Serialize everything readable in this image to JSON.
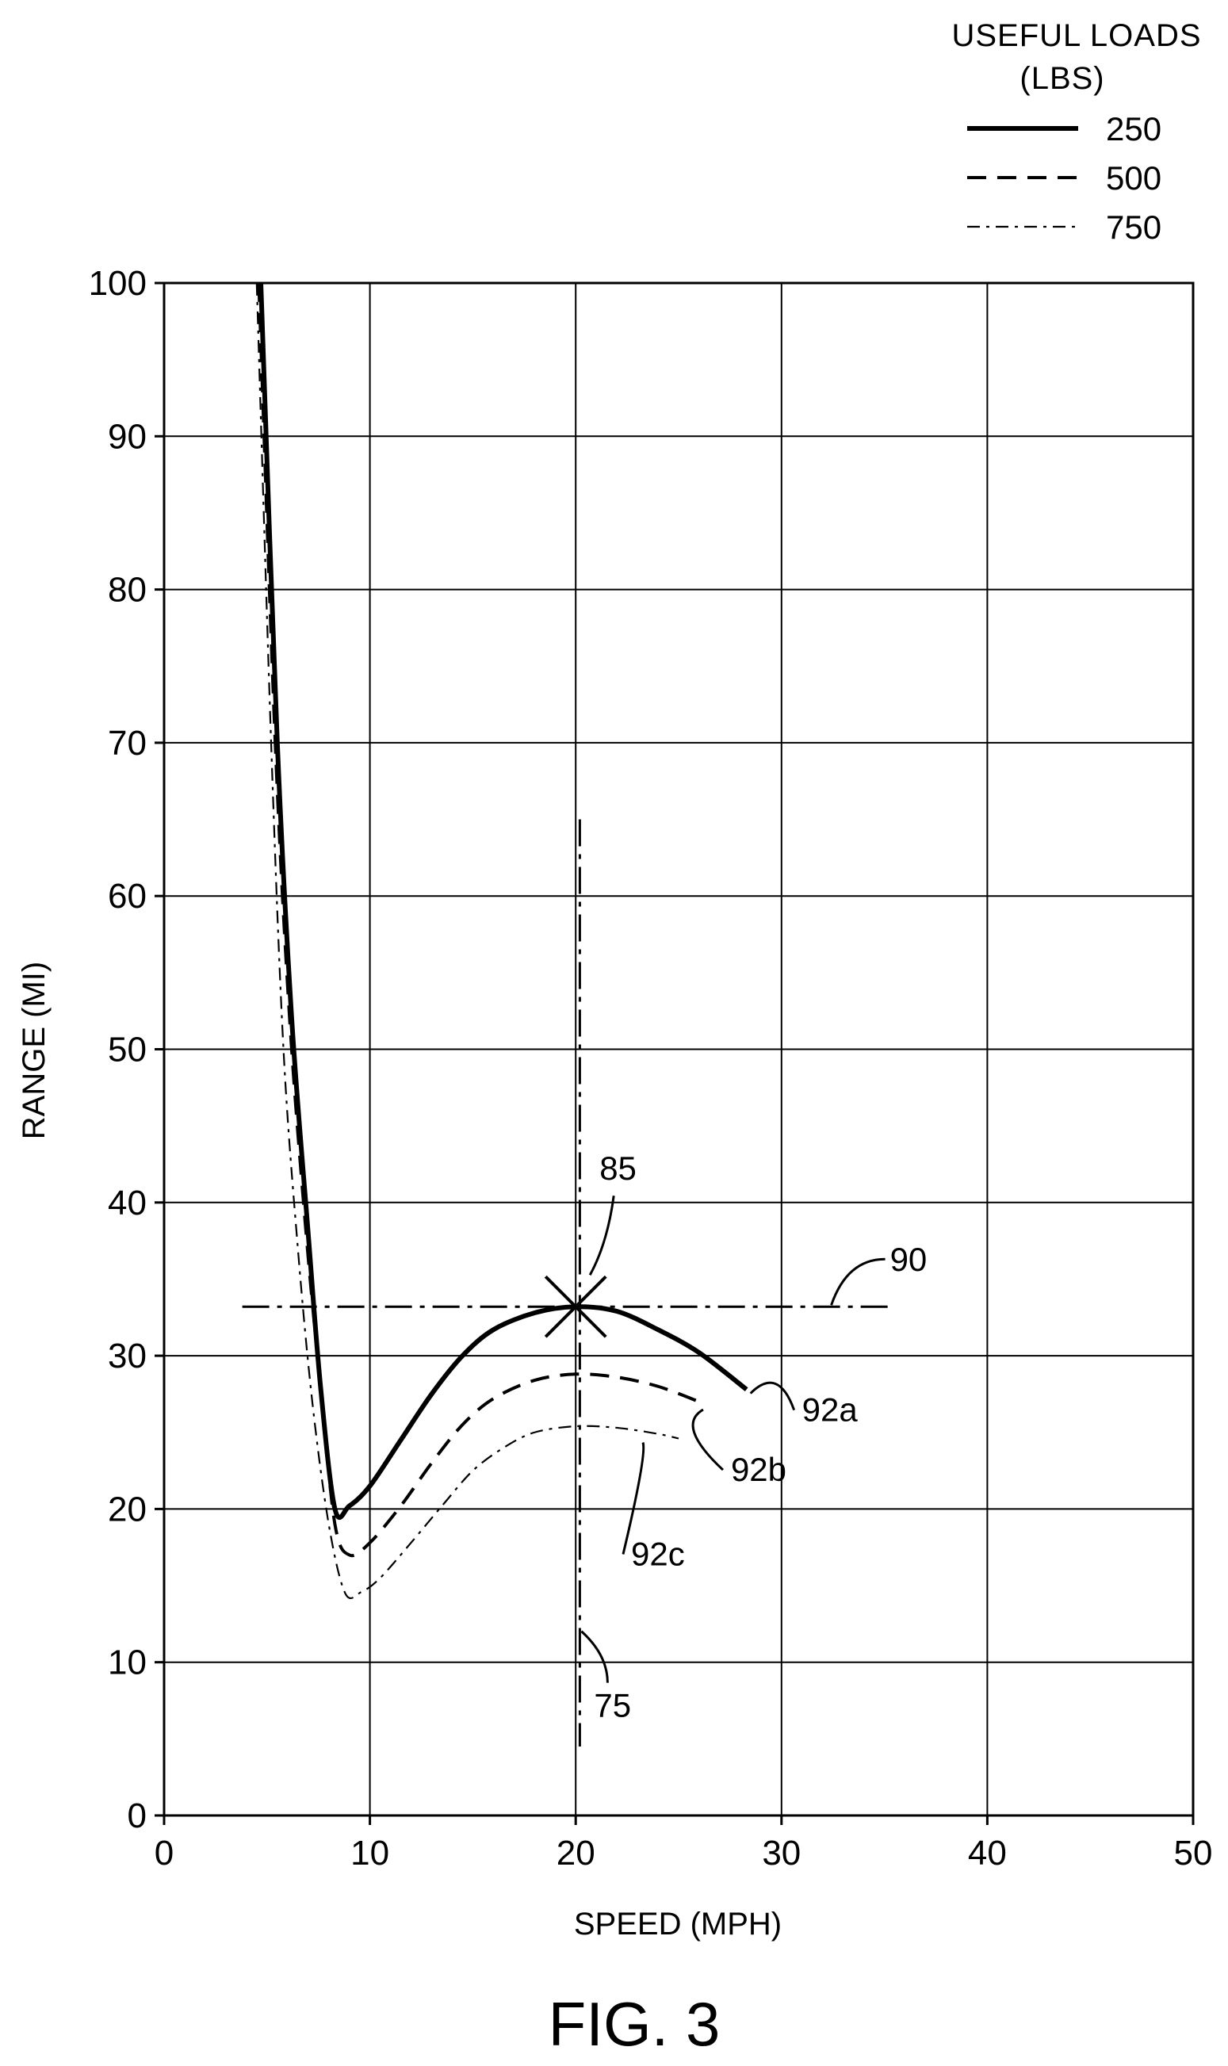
{
  "chart_data": {
    "type": "line",
    "xlabel": "SPEED (MPH)",
    "ylabel": "RANGE (MI)",
    "figure_label": "FIG. 3",
    "xlim": [
      0,
      50
    ],
    "ylim": [
      0,
      100
    ],
    "x_ticks": [
      0,
      10,
      20,
      30,
      40,
      50
    ],
    "y_ticks": [
      0,
      10,
      20,
      30,
      40,
      50,
      60,
      70,
      80,
      90,
      100
    ],
    "x_tick_labels": [
      "0",
      "10",
      "20",
      "30",
      "40",
      "50"
    ],
    "y_tick_labels": [
      "0",
      "10",
      "20",
      "30",
      "40",
      "50",
      "60",
      "70",
      "80",
      "90",
      "100"
    ],
    "grid": true,
    "legend": {
      "title": "USEFUL LOADS",
      "subtitle": "(LBS)",
      "placement": "top-right, above plot"
    },
    "series": [
      {
        "name": "250",
        "style": "solid",
        "label": "92a",
        "x": [
          4.7,
          5.5,
          6.2,
          7.0,
          7.6,
          8.3,
          9.0,
          10.0,
          11.5,
          13.0,
          14.5,
          16.0,
          18.0,
          20.0,
          22.0,
          24.0,
          26.0,
          28.3
        ],
        "y": [
          100,
          70,
          52,
          38,
          28,
          20,
          20.2,
          21.5,
          24.5,
          27.5,
          30.0,
          31.7,
          32.8,
          33.2,
          32.9,
          31.7,
          30.2,
          27.8
        ]
      },
      {
        "name": "500",
        "style": "dashed",
        "label": "92b",
        "x": [
          4.6,
          5.4,
          6.1,
          6.9,
          7.6,
          8.3,
          9.0,
          10.0,
          11.5,
          13.0,
          14.5,
          16.0,
          18.0,
          20.0,
          22.0,
          24.0,
          26.0
        ],
        "y": [
          100,
          70,
          52,
          38,
          28,
          19,
          17.0,
          17.8,
          20.2,
          23.0,
          25.5,
          27.2,
          28.4,
          28.8,
          28.6,
          28.0,
          27.0
        ]
      },
      {
        "name": "750",
        "style": "dash-dot",
        "label": "92c",
        "x": [
          4.5,
          5.2,
          5.8,
          6.5,
          7.2,
          8.0,
          8.8,
          9.6,
          10.5,
          12.0,
          13.5,
          15.0,
          16.5,
          18.0,
          20.0,
          22.0,
          24.0,
          25.0
        ],
        "y": [
          100,
          70,
          50,
          37,
          27,
          19,
          14.5,
          14.6,
          15.5,
          17.8,
          20.2,
          22.5,
          24.0,
          25.0,
          25.4,
          25.3,
          24.9,
          24.6
        ]
      }
    ],
    "annotations": [
      {
        "label": "85",
        "type": "x-marker",
        "x": 20,
        "y": 33.2
      },
      {
        "label": "90",
        "type": "horizontal dash-dot line",
        "y": 33.2,
        "x_range": [
          3.8,
          35.5
        ]
      },
      {
        "label": "75",
        "type": "vertical dash-dot line",
        "x": 20.2,
        "y_range": [
          4.5,
          65
        ]
      }
    ]
  }
}
